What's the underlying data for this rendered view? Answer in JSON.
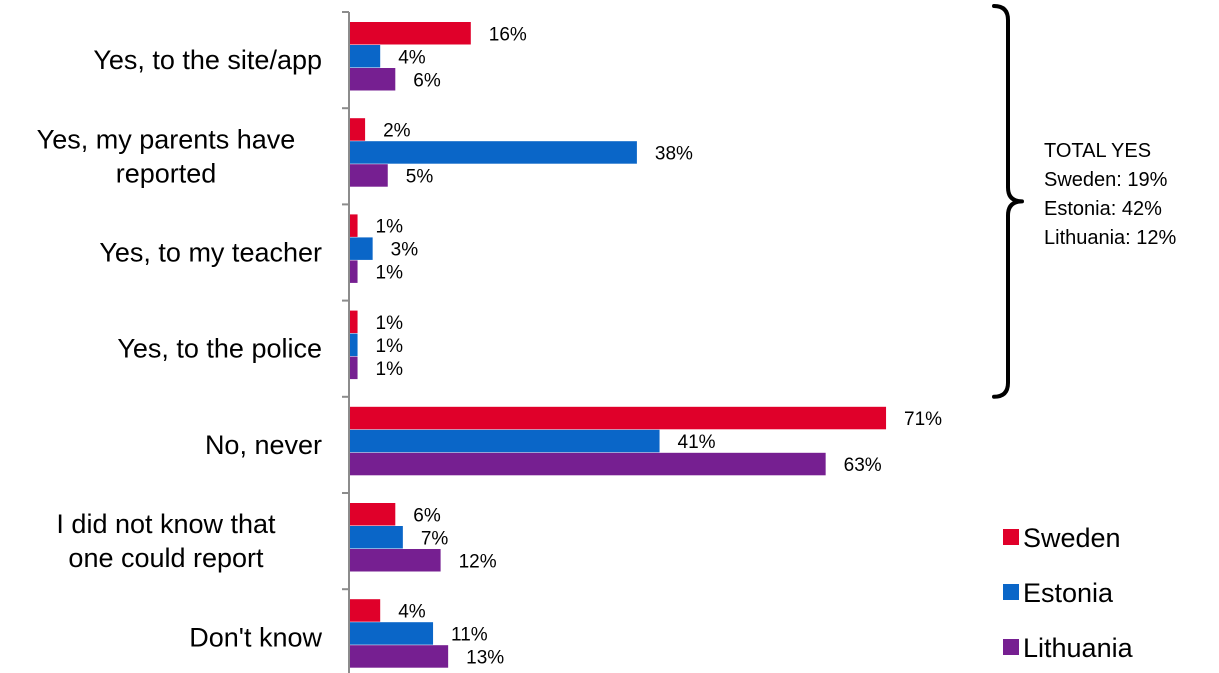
{
  "chart_data": {
    "type": "bar",
    "orientation": "horizontal",
    "categories": [
      [
        "Yes, to the site/app"
      ],
      [
        "Yes, my parents have",
        "reported"
      ],
      [
        "Yes, to my teacher"
      ],
      [
        "Yes, to the police"
      ],
      [
        "No, never"
      ],
      [
        "I did not know that",
        "one could report"
      ],
      [
        "Don't know"
      ]
    ],
    "series": [
      {
        "name": "Sweden",
        "color": "#e0002a",
        "values": [
          16,
          2,
          1,
          1,
          71,
          6,
          4
        ]
      },
      {
        "name": "Estonia",
        "color": "#0a66c8",
        "values": [
          4,
          38,
          3,
          1,
          41,
          7,
          11
        ]
      },
      {
        "name": "Lithuania",
        "color": "#761f91",
        "values": [
          6,
          5,
          1,
          1,
          63,
          12,
          13
        ]
      }
    ],
    "value_suffix": "%",
    "xlim": [
      0,
      80
    ],
    "grid": false,
    "legend_position": "bottom-right",
    "annotation": {
      "lines": [
        "TOTAL YES",
        "Sweden: 19%",
        "Estonia: 42%",
        "Lithuania: 12%"
      ],
      "spans_categories": [
        0,
        3
      ]
    }
  }
}
